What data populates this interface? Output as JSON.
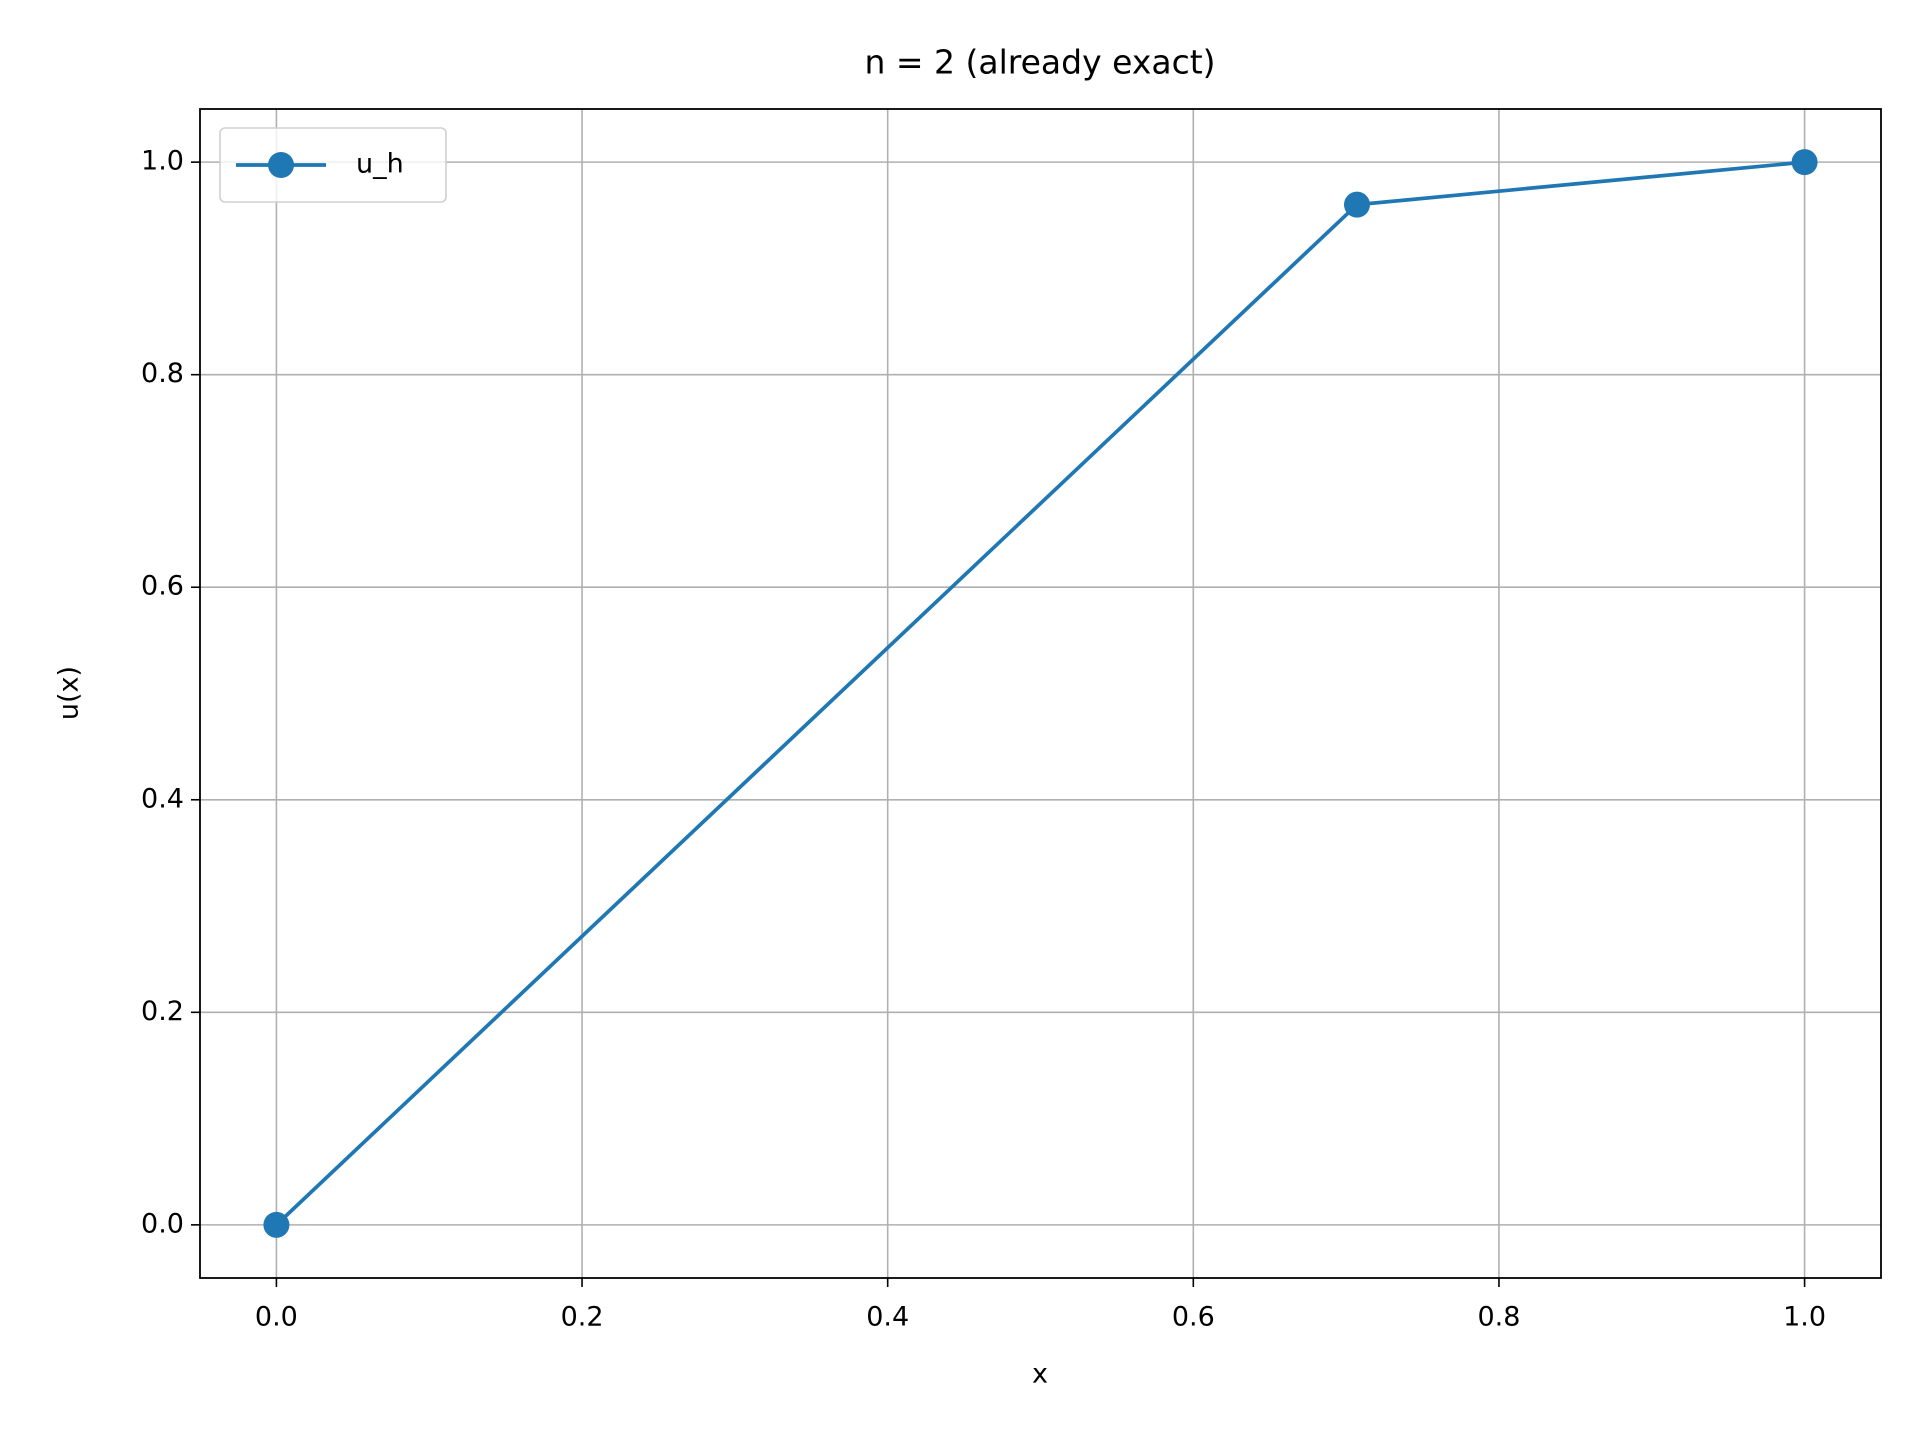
{
  "chart_data": {
    "type": "line",
    "title": "n = 2 (already exact)",
    "xlabel": "x",
    "ylabel": "u(x)",
    "x": [
      0,
      0.7071,
      1
    ],
    "series": [
      {
        "name": "u_h",
        "color": "#1f77b4",
        "marker": "o",
        "values": [
          0,
          0.96,
          1
        ]
      }
    ],
    "xlim": [
      -0.05,
      1.05
    ],
    "ylim": [
      -0.05,
      1.05
    ],
    "xticks": [
      {
        "value": 0,
        "label": "0.0"
      },
      0.2,
      0.4,
      0.6,
      0.8,
      {
        "value": 1,
        "label": "1.0"
      }
    ],
    "yticks": [
      {
        "value": 0,
        "label": "0.0"
      },
      0.2,
      0.4,
      0.6,
      0.8,
      {
        "value": 1,
        "label": "1.0"
      }
    ],
    "grid": true,
    "legend": "upper left"
  }
}
